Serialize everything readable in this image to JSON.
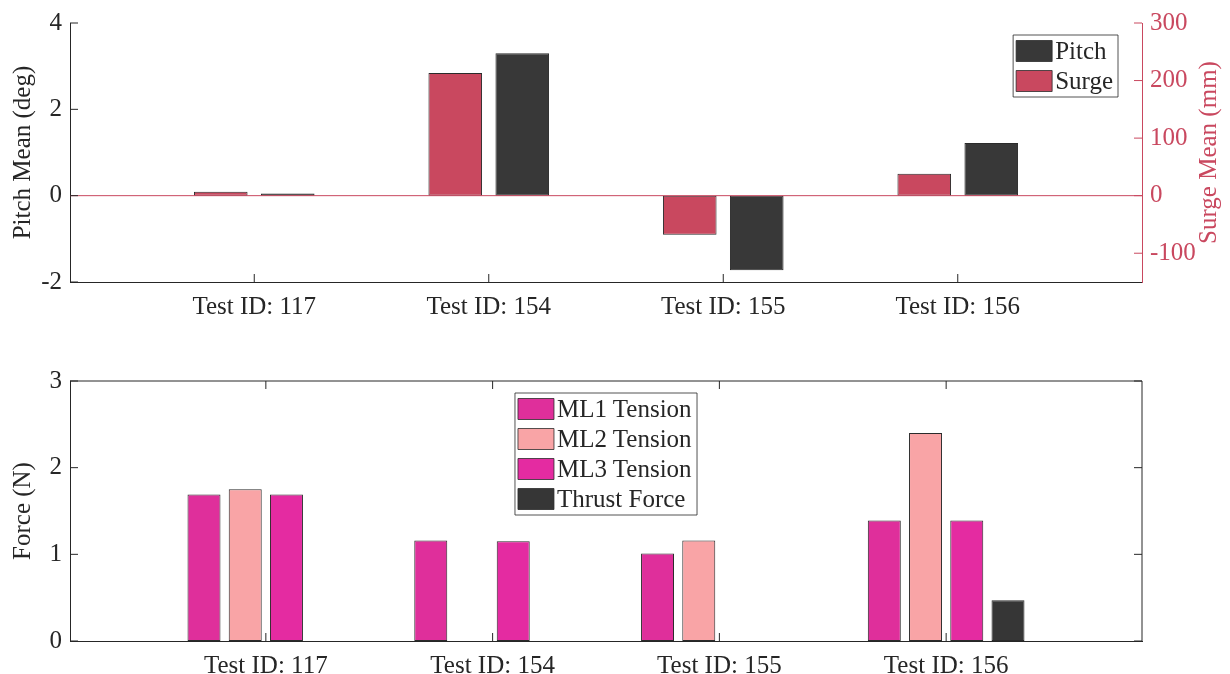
{
  "chart_data": [
    {
      "type": "bar",
      "categories": [
        "Test ID: 117",
        "Test ID: 154",
        "Test ID: 155",
        "Test ID: 156"
      ],
      "series": [
        {
          "name": "Surge",
          "color": "#c9485f",
          "values": [
            7,
            213,
            -68,
            38
          ],
          "axis": "y2"
        },
        {
          "name": "Pitch",
          "color": "#383838",
          "values": [
            0.05,
            3.3,
            -1.73,
            1.22
          ]
        }
      ],
      "ylabel": "Pitch Mean (deg)",
      "y2label": "Surge Mean (mm)",
      "ylim": [
        -2,
        4
      ],
      "yticks": [
        -2,
        0,
        2,
        4
      ],
      "y2lim": [
        -150,
        300
      ],
      "y2ticks": [
        -100,
        0,
        100,
        200,
        300
      ],
      "legend": "top right",
      "ref_lines": [
        {
          "axis": "y2",
          "value": 0
        }
      ]
    },
    {
      "type": "bar",
      "categories": [
        "Test ID: 117",
        "Test ID: 154",
        "Test ID: 155",
        "Test ID: 156"
      ],
      "series": [
        {
          "name": "ML1 Tension",
          "color": "#df2f9b",
          "values": [
            1.69,
            1.16,
            1.01,
            1.39
          ]
        },
        {
          "name": "ML2 Tension",
          "color": "#f9a4a6",
          "values": [
            1.75,
            null,
            1.16,
            2.4
          ]
        },
        {
          "name": "ML3 Tension",
          "color": "#e42ba1",
          "values": [
            1.69,
            1.15,
            null,
            1.39
          ]
        },
        {
          "name": "Thrust Force",
          "color": "#363636",
          "values": [
            null,
            null,
            null,
            0.47
          ]
        }
      ],
      "ylabel": "Force (N)",
      "ylim": [
        0,
        3
      ],
      "yticks": [
        0,
        1,
        2,
        3
      ],
      "legend": "top"
    }
  ]
}
